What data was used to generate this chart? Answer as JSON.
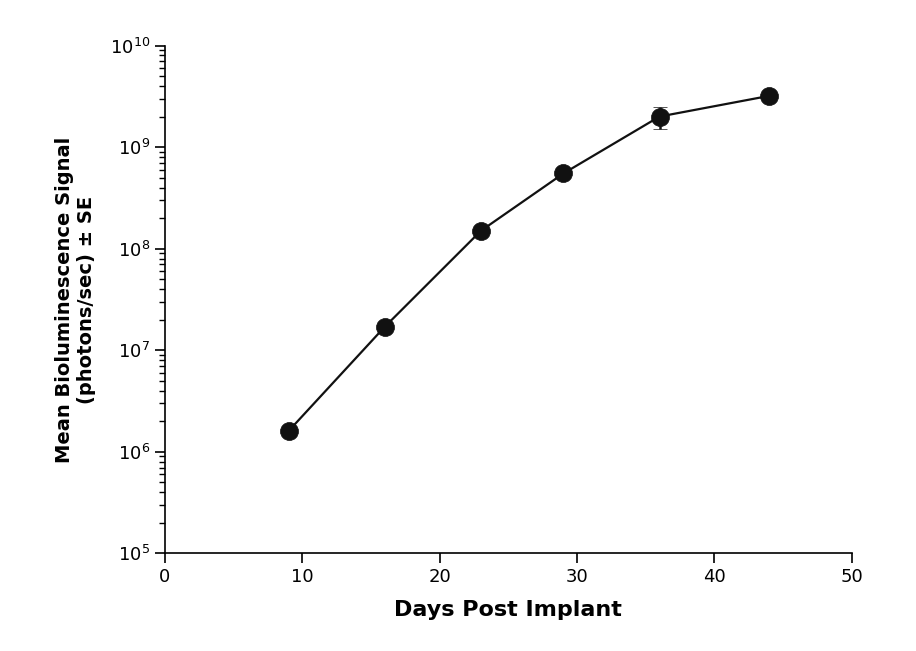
{
  "x": [
    9,
    16,
    23,
    29,
    36,
    44
  ],
  "y": [
    1600000.0,
    17000000.0,
    150000000.0,
    550000000.0,
    2000000000.0,
    3200000000.0
  ],
  "yerr_lower": [
    80000.0,
    800000.0,
    15000000.0,
    50000000.0,
    500000000.0,
    200000000.0
  ],
  "yerr_upper": [
    80000.0,
    800000.0,
    15000000.0,
    50000000.0,
    500000000.0,
    250000000.0
  ],
  "xlabel": "Days Post Implant",
  "ylabel": "Mean Bioluminescence Signal\n(photons/sec) ± SE",
  "xlim": [
    0,
    50
  ],
  "ylim_log": [
    100000.0,
    10000000000.0
  ],
  "xticks": [
    0,
    10,
    20,
    30,
    40,
    50
  ],
  "line_color": "#111111",
  "marker_color": "#111111",
  "marker_size": 13,
  "line_width": 1.6,
  "background_color": "#ffffff",
  "xlabel_fontsize": 16,
  "ylabel_fontsize": 14,
  "tick_fontsize": 13
}
